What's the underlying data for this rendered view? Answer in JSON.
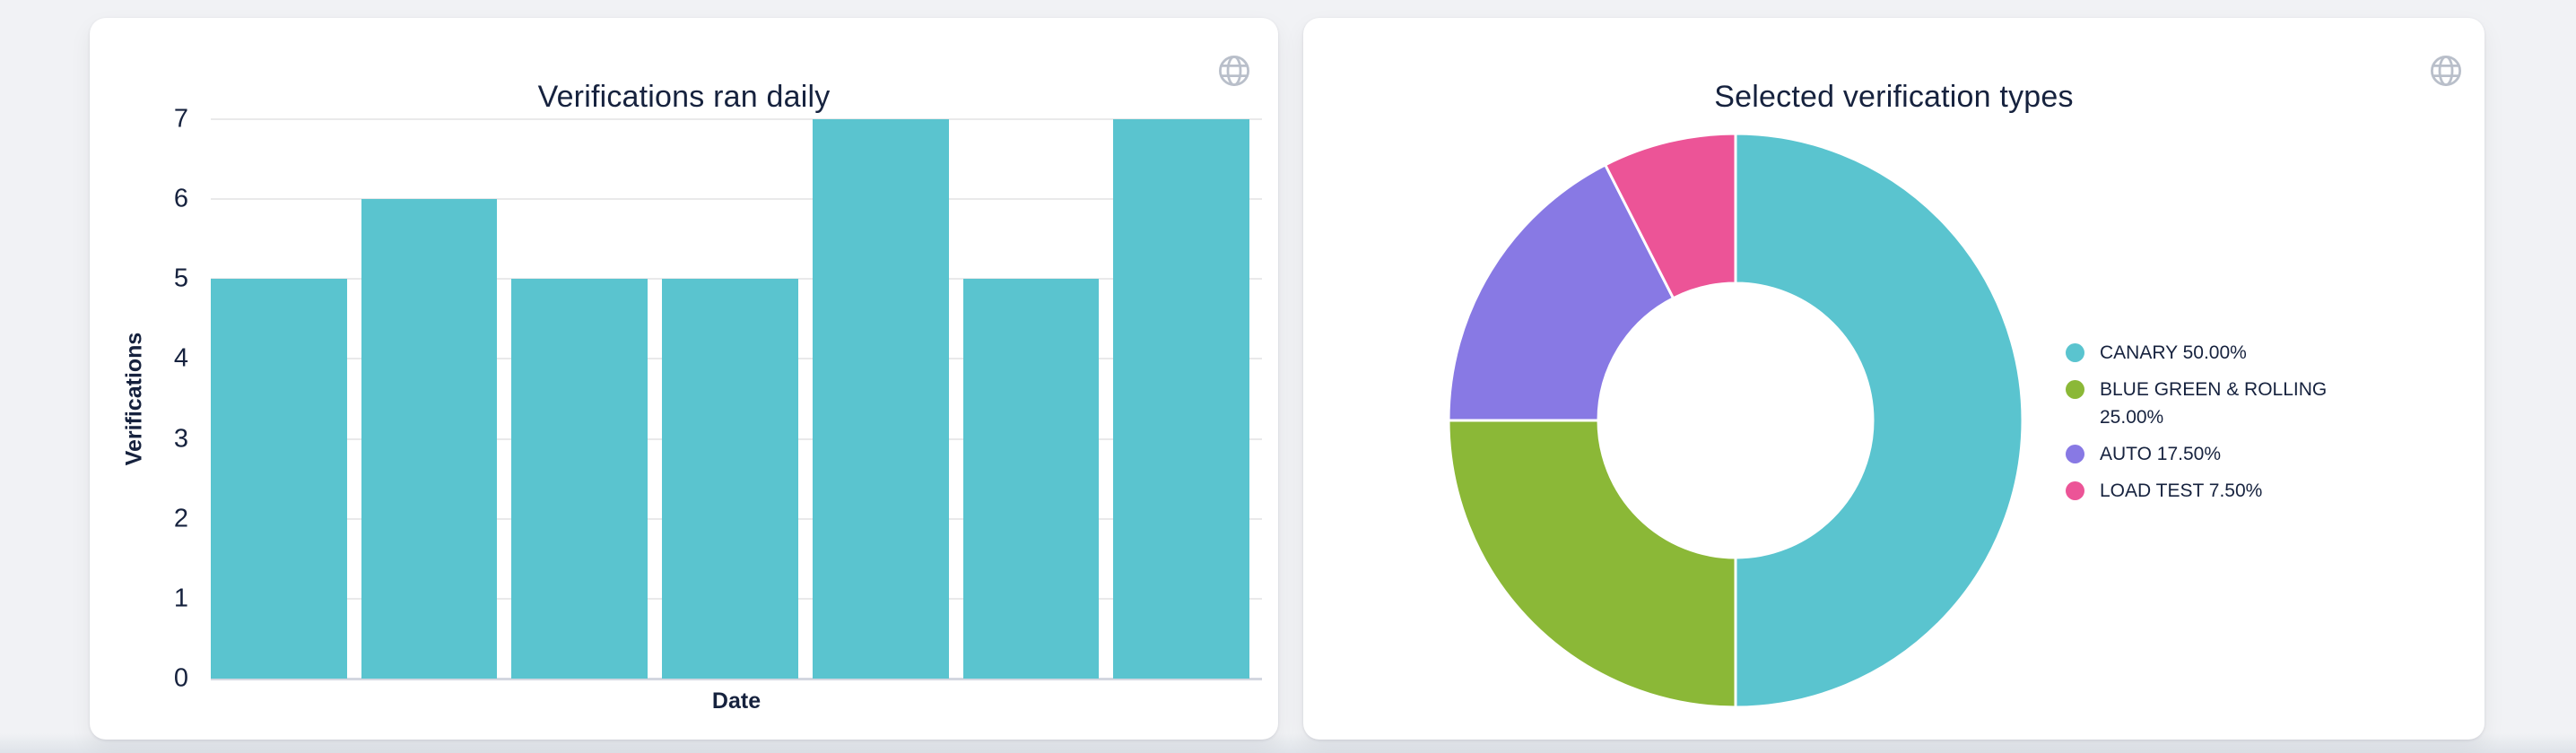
{
  "page": {
    "background": "#F1F2F5"
  },
  "theme": {
    "text": "#16223E",
    "grid": "#E9E9EA",
    "axis_baseline": "#D3D7E0",
    "card_background": "#FFFFFF",
    "icon_gray": "#B9BFCA"
  },
  "cards": [
    {
      "title": "Verifications ran daily",
      "icon": "globe-icon"
    },
    {
      "title": "Selected verification types",
      "icon": "globe-icon"
    }
  ],
  "chart_data": [
    {
      "id": "verifications-ran-daily",
      "type": "bar",
      "title": "Verifications ran daily",
      "xlabel": "Date",
      "ylabel": "Verifications",
      "categories": [
        "",
        "",
        "",
        "",
        "",
        "",
        ""
      ],
      "values": [
        5,
        6,
        5,
        5,
        7,
        5,
        7
      ],
      "ylim": [
        0,
        7
      ],
      "yticks": [
        0,
        1,
        2,
        3,
        4,
        5,
        6,
        7
      ],
      "grid": true,
      "x_tick_labels_visible": false,
      "bar_color": "#5AC4CF"
    },
    {
      "id": "selected-verification-types",
      "type": "pie",
      "title": "Selected verification types",
      "donut": true,
      "inner_radius_ratio": 0.48,
      "start_angle_deg_from_top": 0,
      "direction": "clockwise",
      "legend_position": "right",
      "slices": [
        {
          "label": "CANARY",
          "percent": 50.0,
          "legend_label": "CANARY 50.00%",
          "color": "#5AC4CF"
        },
        {
          "label": "BLUE GREEN & ROLLING",
          "percent": 25.0,
          "legend_label": "BLUE GREEN & ROLLING 25.00%",
          "color": "#8BB837"
        },
        {
          "label": "AUTO",
          "percent": 17.5,
          "legend_label": "AUTO 17.50%",
          "color": "#8879E4"
        },
        {
          "label": "LOAD TEST",
          "percent": 7.5,
          "legend_label": "LOAD TEST 7.50%",
          "color": "#EC5497"
        }
      ]
    }
  ]
}
